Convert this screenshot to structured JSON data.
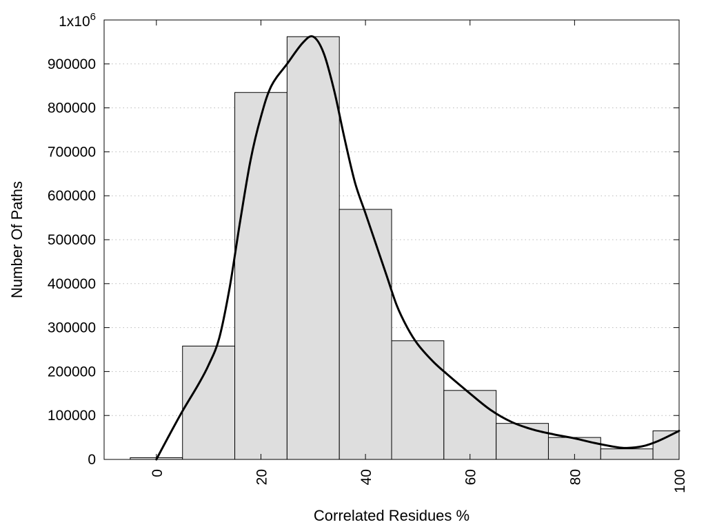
{
  "chart_data": {
    "type": "bar",
    "xlabel": "Correlated Residues %",
    "ylabel": "Number Of Paths",
    "xlim": [
      -10,
      100
    ],
    "ylim": [
      0,
      1000000
    ],
    "xticks": [
      0,
      20,
      40,
      60,
      80,
      100
    ],
    "xtick_labels": [
      "0",
      "20",
      "40",
      "60",
      "80",
      "100"
    ],
    "yticks": [
      0,
      100000,
      200000,
      300000,
      400000,
      500000,
      600000,
      700000,
      800000,
      900000
    ],
    "ytick_labels": [
      "0",
      "100000",
      "200000",
      "300000",
      "400000",
      "500000",
      "600000",
      "700000",
      "800000",
      "900000"
    ],
    "ytop_label": {
      "base": "1x10",
      "exp": "6"
    },
    "grid": "horizontal dotted",
    "bin_width": 10,
    "bins": [
      {
        "x": 0,
        "value": 4000
      },
      {
        "x": 10,
        "value": 258000
      },
      {
        "x": 20,
        "value": 835000
      },
      {
        "x": 30,
        "value": 962000
      },
      {
        "x": 40,
        "value": 569000
      },
      {
        "x": 50,
        "value": 270000
      },
      {
        "x": 60,
        "value": 157000
      },
      {
        "x": 70,
        "value": 82000
      },
      {
        "x": 80,
        "value": 50000
      },
      {
        "x": 90,
        "value": 24000
      },
      {
        "x": 100,
        "value": 65000
      }
    ],
    "curve": [
      [
        0,
        0
      ],
      [
        2,
        45000
      ],
      [
        5,
        110000
      ],
      [
        8,
        170000
      ],
      [
        10,
        215000
      ],
      [
        12,
        275000
      ],
      [
        14,
        390000
      ],
      [
        16,
        540000
      ],
      [
        18,
        680000
      ],
      [
        20,
        780000
      ],
      [
        22,
        850000
      ],
      [
        25,
        900000
      ],
      [
        28,
        948000
      ],
      [
        30,
        962000
      ],
      [
        32,
        925000
      ],
      [
        34,
        840000
      ],
      [
        36,
        730000
      ],
      [
        38,
        630000
      ],
      [
        40,
        560000
      ],
      [
        42,
        490000
      ],
      [
        44,
        420000
      ],
      [
        46,
        350000
      ],
      [
        48,
        300000
      ],
      [
        50,
        262000
      ],
      [
        53,
        222000
      ],
      [
        56,
        190000
      ],
      [
        60,
        150000
      ],
      [
        64,
        112000
      ],
      [
        68,
        85000
      ],
      [
        72,
        68000
      ],
      [
        76,
        57000
      ],
      [
        80,
        48000
      ],
      [
        84,
        37000
      ],
      [
        88,
        28000
      ],
      [
        90,
        26000
      ],
      [
        93,
        30000
      ],
      [
        96,
        42000
      ],
      [
        100,
        65000
      ]
    ],
    "colors": {
      "bar_fill": "#dedede",
      "bar_edge": "#000000",
      "curve": "#000000",
      "grid": "#b8b8b8"
    }
  }
}
